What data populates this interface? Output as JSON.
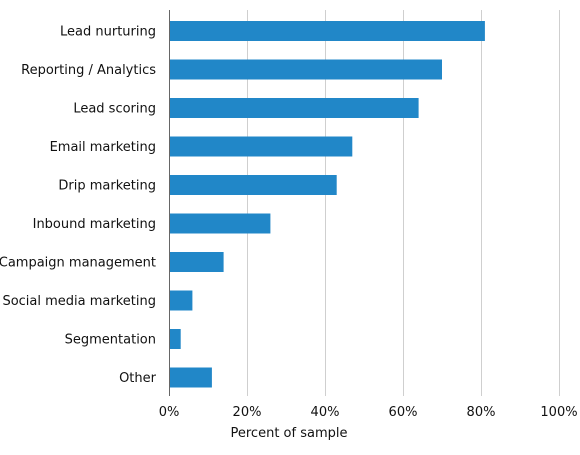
{
  "chart_data": {
    "type": "bar",
    "orientation": "horizontal",
    "categories": [
      "Lead nurturing",
      "Reporting / Analytics",
      "Lead scoring",
      "Email marketing",
      "Drip marketing",
      "Inbound marketing",
      "Campaign management",
      "Social media marketing",
      "Segmentation",
      "Other"
    ],
    "values": [
      81,
      70,
      64,
      47,
      43,
      26,
      14,
      6,
      3,
      11
    ],
    "xlabel": "Percent of sample",
    "ylabel": "",
    "xlim": [
      0,
      100
    ],
    "xticks": [
      0,
      20,
      40,
      60,
      80,
      100
    ],
    "xtick_labels": [
      "0%",
      "20%",
      "40%",
      "60%",
      "80%",
      "100%"
    ],
    "grid": "vertical",
    "bar_color": "#2187c8"
  }
}
